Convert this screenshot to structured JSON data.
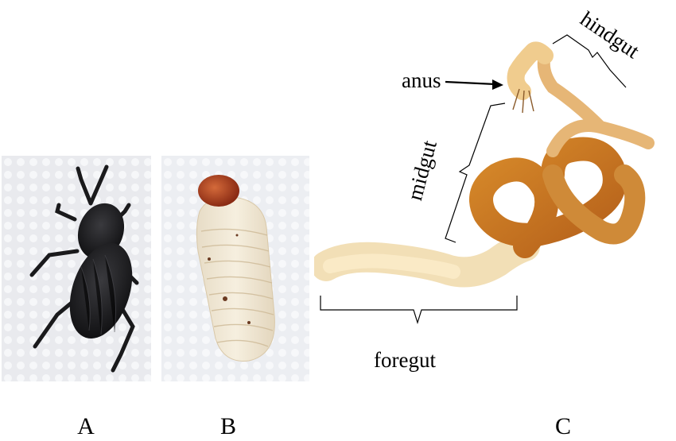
{
  "panels": {
    "a": {
      "label": "A"
    },
    "b": {
      "label": "B"
    },
    "c": {
      "label": "C"
    }
  },
  "annotations": {
    "anus": "anus",
    "midgut": "midgut",
    "hindgut": "hindgut",
    "foregut": "foregut"
  }
}
